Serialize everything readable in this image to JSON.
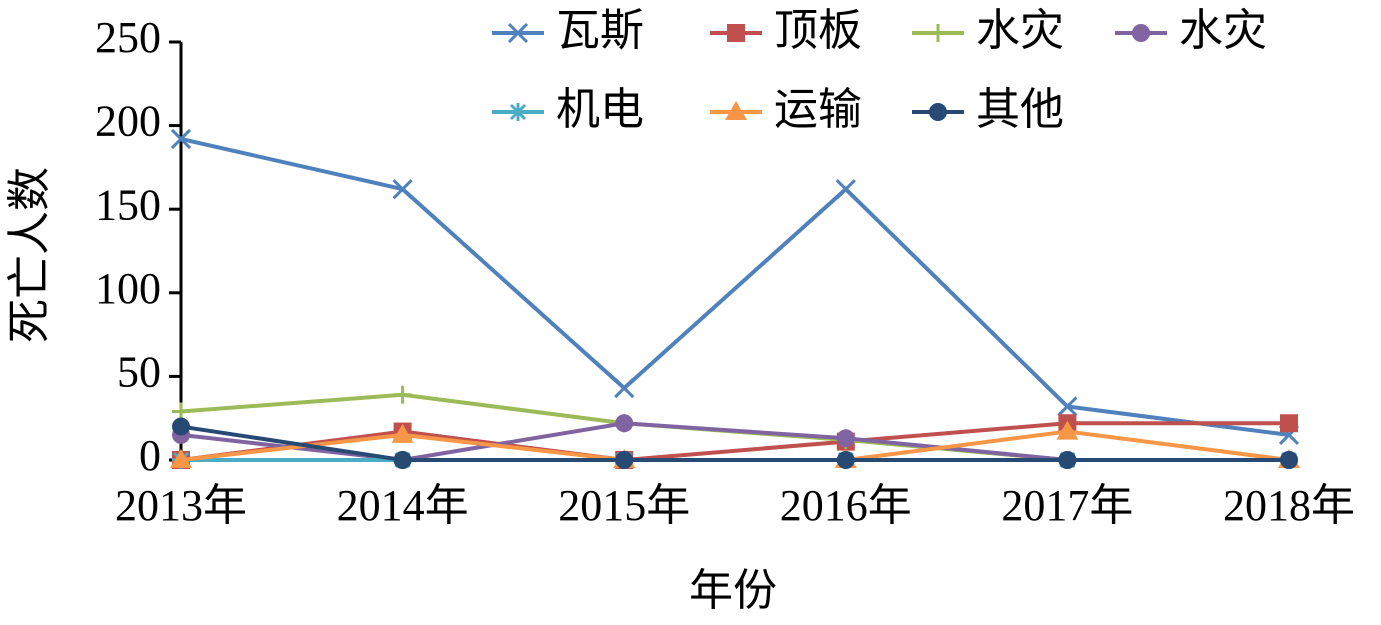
{
  "chart_data": {
    "type": "line",
    "x_label": "年份",
    "y_label": "死亡人数",
    "categories": [
      "2013年",
      "2014年",
      "2015年",
      "2016年",
      "2017年",
      "2018年"
    ],
    "ylim": [
      0,
      250
    ],
    "yticks": [
      0,
      50,
      100,
      150,
      200,
      250
    ],
    "series": [
      {
        "name": "瓦斯",
        "color": "#4f81bd",
        "marker": "x",
        "values": [
          192,
          162,
          43,
          162,
          32,
          15
        ]
      },
      {
        "name": "顶板",
        "color": "#c0504d",
        "marker": "square",
        "values": [
          0,
          17,
          0,
          11,
          22,
          22
        ]
      },
      {
        "name": "水灾",
        "color": "#9bbb59",
        "marker": "plus",
        "values": [
          29,
          39,
          22,
          12,
          0,
          0
        ]
      },
      {
        "name": "水灾",
        "color": "#8064a2",
        "marker": "circle",
        "values": [
          15,
          0,
          22,
          13,
          0,
          0
        ]
      },
      {
        "name": "机电",
        "color": "#4bacc6",
        "marker": "star",
        "values": [
          0,
          0,
          0,
          0,
          0,
          0
        ]
      },
      {
        "name": "运输",
        "color": "#f79646",
        "marker": "triangle",
        "values": [
          0,
          15,
          0,
          0,
          17,
          0
        ]
      },
      {
        "name": "其他",
        "color": "#264a73",
        "marker": "circle",
        "values": [
          20,
          0,
          0,
          0,
          0,
          0
        ]
      }
    ]
  }
}
